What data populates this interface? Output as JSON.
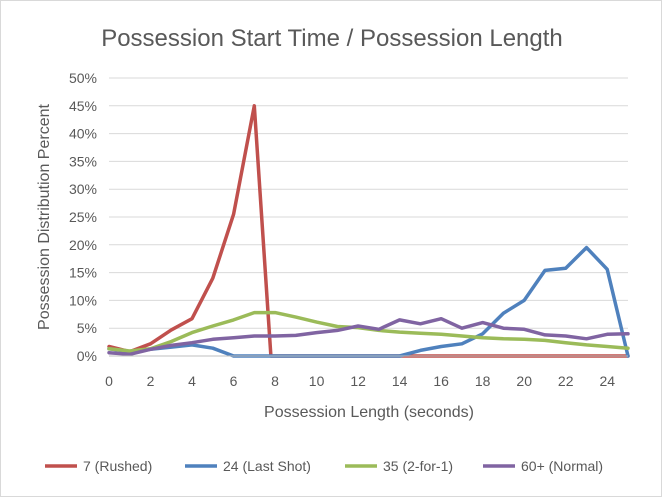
{
  "chart_data": {
    "type": "line",
    "title": "Possession  Start Time / Possession  Length",
    "xlabel": "Possession Length (seconds)",
    "ylabel": "Possession Distribution Percent",
    "xlim": [
      0,
      25
    ],
    "ylim": [
      0,
      50
    ],
    "x_ticks": [
      "0",
      "2",
      "4",
      "6",
      "8",
      "10",
      "12",
      "14",
      "16",
      "18",
      "20",
      "22",
      "24"
    ],
    "y_ticks": [
      "0%",
      "5%",
      "10%",
      "15%",
      "20%",
      "25%",
      "30%",
      "35%",
      "40%",
      "45%",
      "50%"
    ],
    "grid": "horizontal",
    "legend_position": "bottom",
    "x": [
      0,
      1,
      2,
      3,
      4,
      5,
      6,
      7,
      8,
      9,
      10,
      11,
      12,
      13,
      14,
      15,
      16,
      17,
      18,
      19,
      20,
      21,
      22,
      23,
      24,
      25
    ],
    "series": [
      {
        "name": "7 (Rushed)",
        "color": "#c0504d",
        "values": [
          1.7,
          0.8,
          2.2,
          4.7,
          6.7,
          14,
          25.5,
          45,
          0,
          0,
          0,
          0,
          0,
          0,
          0,
          0,
          0,
          0,
          0,
          0,
          0,
          0,
          0,
          0,
          0,
          0
        ],
        "points": [
          [
            0,
            1.7
          ],
          [
            1,
            0.8
          ],
          [
            2,
            2.2
          ],
          [
            3,
            4.7
          ],
          [
            4,
            6.7
          ],
          [
            5,
            14
          ],
          [
            6,
            25.5
          ],
          [
            7,
            45
          ],
          [
            7.8,
            0
          ],
          [
            25,
            0
          ]
        ]
      },
      {
        "name": "24 (Last Shot)",
        "color": "#4f81bd",
        "values": [
          1.3,
          0.8,
          1.2,
          1.6,
          2.0,
          1.4,
          0,
          0,
          0,
          0,
          0,
          0,
          0,
          0,
          0,
          1,
          1.7,
          2.2,
          4,
          7.7,
          10,
          15.4,
          15.8,
          19.5,
          15.6,
          0
        ],
        "points": [
          [
            0,
            1.3
          ],
          [
            1,
            0.8
          ],
          [
            2,
            1.2
          ],
          [
            3,
            1.6
          ],
          [
            4,
            2.0
          ],
          [
            5,
            1.4
          ],
          [
            6,
            0
          ],
          [
            7,
            0
          ],
          [
            8,
            0
          ],
          [
            9,
            0
          ],
          [
            10,
            0
          ],
          [
            11,
            0
          ],
          [
            12,
            0
          ],
          [
            13,
            0
          ],
          [
            14,
            0
          ],
          [
            15,
            1
          ],
          [
            16,
            1.7
          ],
          [
            17,
            2.2
          ],
          [
            18,
            4
          ],
          [
            19,
            7.7
          ],
          [
            20,
            10
          ],
          [
            21,
            15.4
          ],
          [
            22,
            15.8
          ],
          [
            23,
            19.5
          ],
          [
            24,
            15.6
          ],
          [
            25,
            0
          ]
        ]
      },
      {
        "name": "35 (2-for-1)",
        "color": "#9bbb59",
        "values": [
          1.3,
          0.9,
          1.3,
          2.6,
          4.2,
          5.4,
          6.5,
          7.8,
          7.8,
          7,
          6.1,
          5.3,
          5.1,
          4.6,
          4.3,
          4.1,
          3.9,
          3.6,
          3.3,
          3.1,
          3.0,
          2.8,
          2.4,
          2.0,
          1.7,
          1.4
        ],
        "points": [
          [
            0,
            1.3
          ],
          [
            1,
            0.9
          ],
          [
            2,
            1.3
          ],
          [
            3,
            2.6
          ],
          [
            4,
            4.2
          ],
          [
            5,
            5.4
          ],
          [
            6,
            6.5
          ],
          [
            7,
            7.8
          ],
          [
            8,
            7.8
          ],
          [
            9,
            7
          ],
          [
            10,
            6.1
          ],
          [
            11,
            5.3
          ],
          [
            12,
            5.1
          ],
          [
            13,
            4.6
          ],
          [
            14,
            4.3
          ],
          [
            15,
            4.1
          ],
          [
            16,
            3.9
          ],
          [
            17,
            3.6
          ],
          [
            18,
            3.3
          ],
          [
            19,
            3.1
          ],
          [
            20,
            3.0
          ],
          [
            21,
            2.8
          ],
          [
            22,
            2.4
          ],
          [
            23,
            2.0
          ],
          [
            24,
            1.7
          ],
          [
            25,
            1.4
          ]
        ]
      },
      {
        "name": "60+ (Normal)",
        "color": "#8064a2",
        "values": [
          0.6,
          0.3,
          1.2,
          1.9,
          2.4,
          3.0,
          3.3,
          3.6,
          3.6,
          3.7,
          4.2,
          4.6,
          5.4,
          4.8,
          6.5,
          5.8,
          6.7,
          5,
          6,
          5,
          4.8,
          3.8,
          3.6,
          3.1,
          3.9,
          4
        ],
        "points": [
          [
            0,
            0.6
          ],
          [
            1,
            0.3
          ],
          [
            2,
            1.2
          ],
          [
            3,
            1.9
          ],
          [
            4,
            2.4
          ],
          [
            5,
            3.0
          ],
          [
            6,
            3.3
          ],
          [
            7,
            3.6
          ],
          [
            8,
            3.6
          ],
          [
            9,
            3.7
          ],
          [
            10,
            4.2
          ],
          [
            11,
            4.6
          ],
          [
            12,
            5.4
          ],
          [
            13,
            4.8
          ],
          [
            14,
            6.5
          ],
          [
            15,
            5.8
          ],
          [
            16,
            6.7
          ],
          [
            17,
            5
          ],
          [
            18,
            6
          ],
          [
            19,
            5
          ],
          [
            20,
            4.8
          ],
          [
            21,
            3.8
          ],
          [
            22,
            3.6
          ],
          [
            23,
            3.1
          ],
          [
            24,
            3.9
          ],
          [
            25,
            4
          ]
        ]
      }
    ]
  }
}
